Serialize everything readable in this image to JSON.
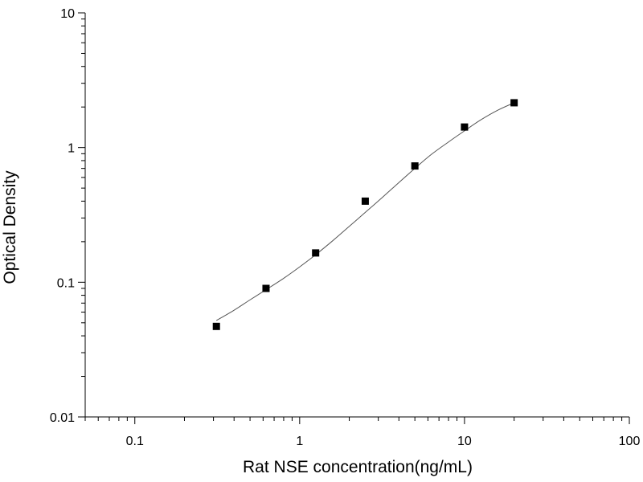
{
  "chart_data": {
    "type": "scatter",
    "title": "",
    "xlabel": "Rat NSE concentration(ng/mL)",
    "ylabel": "Optical Density",
    "x_scale": "log",
    "y_scale": "log",
    "xlim": [
      0.05,
      100
    ],
    "ylim": [
      0.01,
      10
    ],
    "x_ticks": [
      {
        "value": 0.1,
        "label": "0.1"
      },
      {
        "value": 1,
        "label": "1"
      },
      {
        "value": 10,
        "label": "10"
      },
      {
        "value": 100,
        "label": "100"
      }
    ],
    "y_ticks": [
      {
        "value": 0.01,
        "label": "0.01"
      },
      {
        "value": 0.1,
        "label": "0.1"
      },
      {
        "value": 1,
        "label": "1"
      },
      {
        "value": 10,
        "label": "10"
      }
    ],
    "grid": false,
    "legend": "none",
    "series": [
      {
        "x": [
          0.3125,
          0.625,
          1.25,
          2.5,
          5,
          10,
          20
        ],
        "y": [
          0.047,
          0.09,
          0.165,
          0.4,
          0.73,
          1.42,
          2.15
        ],
        "marker": "square",
        "color": "#000000"
      }
    ],
    "fit_curve": {
      "x": [
        0.3125,
        0.4,
        0.5,
        0.625,
        0.8,
        1.0,
        1.25,
        1.6,
        2.0,
        2.5,
        3.2,
        4.0,
        5.0,
        6.3,
        8.0,
        10.0,
        12.5,
        16.0,
        20.0
      ],
      "y": [
        0.052,
        0.062,
        0.074,
        0.088,
        0.107,
        0.13,
        0.16,
        0.205,
        0.26,
        0.33,
        0.43,
        0.55,
        0.7,
        0.89,
        1.1,
        1.33,
        1.6,
        1.9,
        2.15
      ],
      "color": "#555555"
    }
  }
}
